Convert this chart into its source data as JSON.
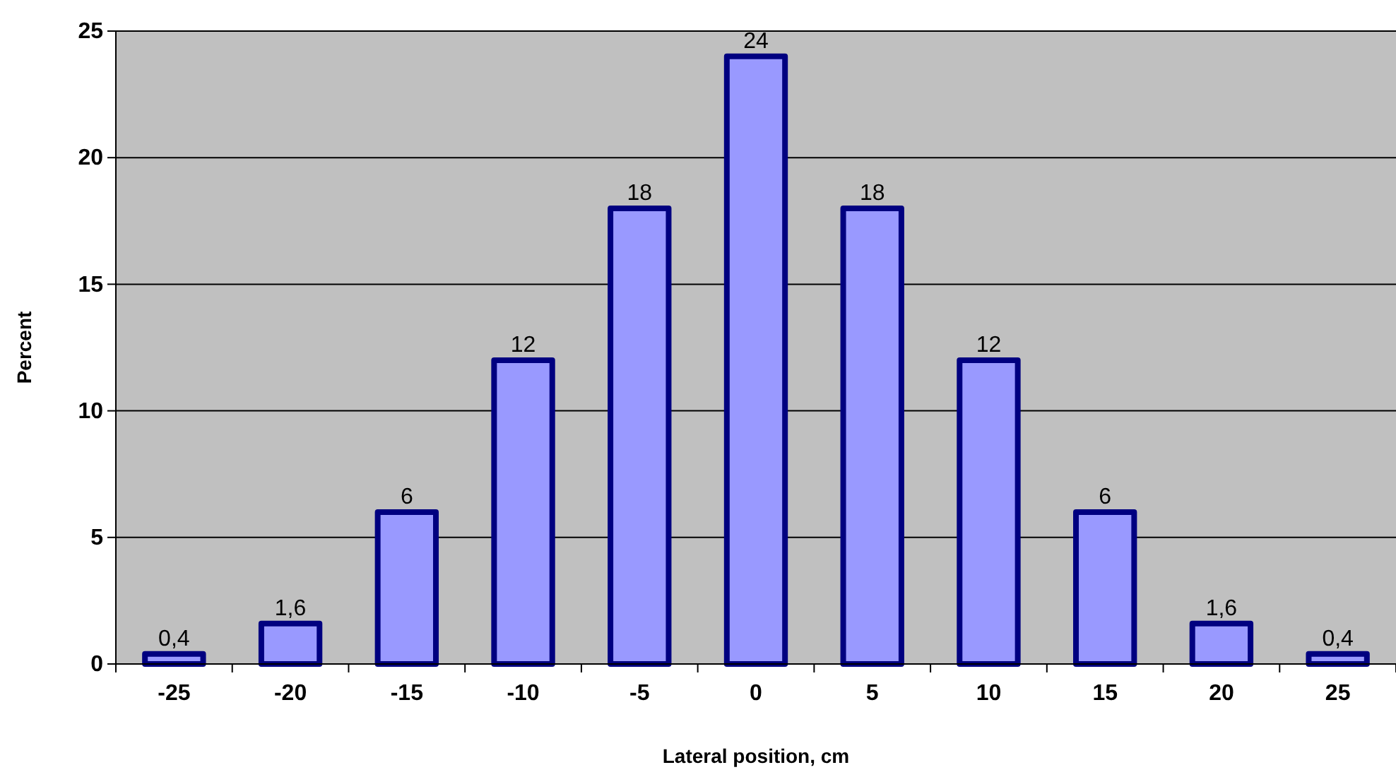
{
  "chart_data": {
    "type": "bar",
    "xlabel": "Lateral position, cm",
    "ylabel": "Percent",
    "categories": [
      "-25",
      "-20",
      "-15",
      "-10",
      "-5",
      "0",
      "5",
      "10",
      "15",
      "20",
      "25"
    ],
    "values": [
      0.4,
      1.6,
      6,
      12,
      18,
      24,
      18,
      12,
      6,
      1.6,
      0.4
    ],
    "value_labels": [
      "0,4",
      "1,6",
      "6",
      "12",
      "18",
      "24",
      "18",
      "12",
      "6",
      "1,6",
      "0,4"
    ],
    "color": "#9999ff",
    "ylim": [
      0,
      25
    ],
    "yticks": [
      0,
      5,
      10,
      15,
      20,
      25
    ],
    "grid": "y"
  }
}
